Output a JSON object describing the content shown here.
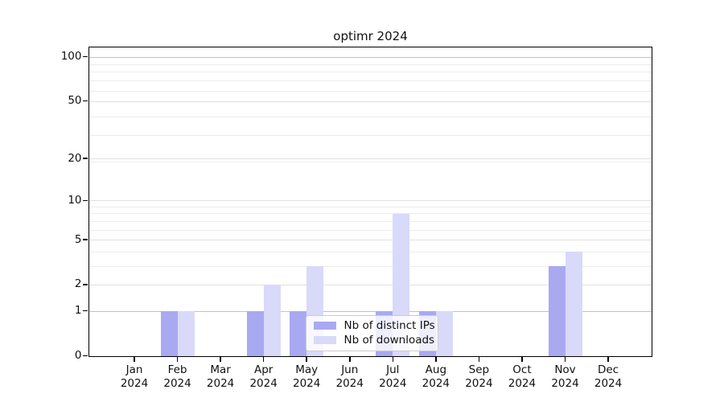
{
  "title": "optimr 2024",
  "chart_data": {
    "type": "bar",
    "title": "optimr 2024",
    "categories": [
      "Jan 2024",
      "Feb 2024",
      "Mar 2024",
      "Apr 2024",
      "May 2024",
      "Jun 2024",
      "Jul 2024",
      "Aug 2024",
      "Sep 2024",
      "Oct 2024",
      "Nov 2024",
      "Dec 2024"
    ],
    "series": [
      {
        "name": "Nb of distinct IPs",
        "color": "#a9a9f2",
        "values": [
          0,
          1,
          0,
          1,
          1,
          0,
          1,
          1,
          0,
          0,
          3,
          0
        ]
      },
      {
        "name": "Nb of downloads",
        "color": "#d9d9fa",
        "values": [
          0,
          1,
          0,
          2,
          3,
          0,
          8,
          1,
          0,
          0,
          4,
          0
        ]
      }
    ],
    "xlabel": "",
    "ylabel": "",
    "y_axis": {
      "scale": "log1p",
      "ticks": [
        0,
        1,
        2,
        5,
        10,
        20,
        50,
        100
      ],
      "range_top": 116
    },
    "grid": "horizontal, log minor lines",
    "legend_position": "lower center, inside axes",
    "colors": {
      "axis": "#000000",
      "grid_minor": "#ececec",
      "grid_major": "#e0e0e0",
      "grid_emphasis": "#c2c2c6",
      "background": "#ffffff"
    }
  }
}
